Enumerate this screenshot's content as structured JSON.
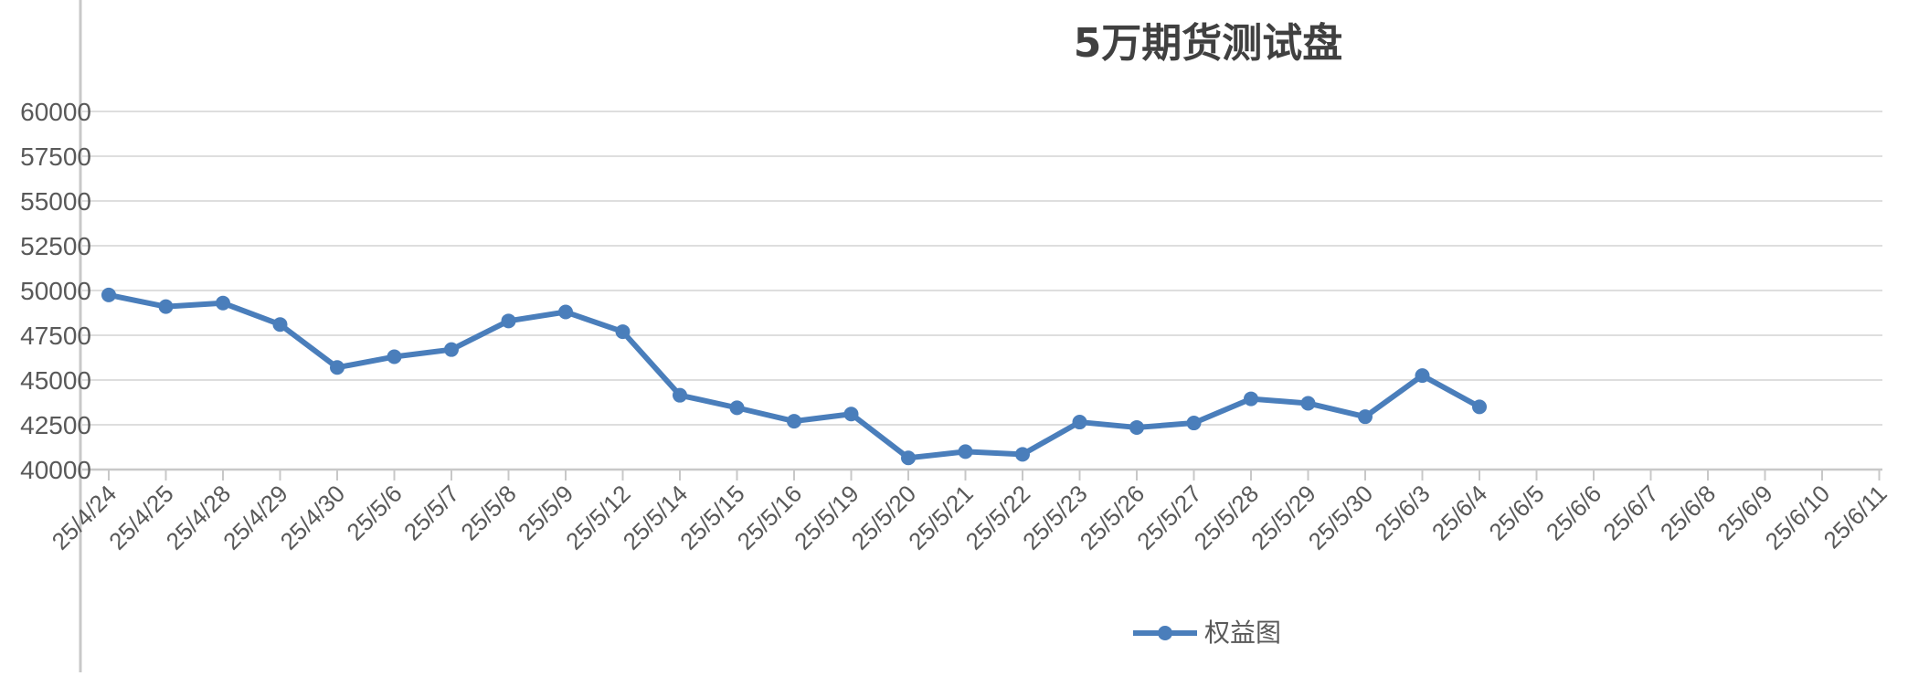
{
  "chart_data": {
    "type": "line",
    "title": "5万期货测试盘",
    "xlabel": "",
    "ylabel": "",
    "ylim": [
      40000,
      60000
    ],
    "yticks": [
      "40000",
      "42500",
      "45000",
      "47500",
      "50000",
      "52500",
      "55000",
      "57500",
      "60000"
    ],
    "categories": [
      "25/4/24",
      "25/4/25",
      "25/4/28",
      "25/4/29",
      "25/4/30",
      "25/5/6",
      "25/5/7",
      "25/5/8",
      "25/5/9",
      "25/5/12",
      "25/5/14",
      "25/5/15",
      "25/5/16",
      "25/5/19",
      "25/5/20",
      "25/5/21",
      "25/5/22",
      "25/5/23",
      "25/5/26",
      "25/5/27",
      "25/5/28",
      "25/5/29",
      "25/5/30",
      "25/6/3",
      "25/6/4",
      "25/6/5",
      "25/6/6",
      "25/6/7",
      "25/6/8",
      "25/6/9",
      "25/6/10",
      "25/6/11"
    ],
    "series": [
      {
        "name": "权益图",
        "color": "#4a7ebb",
        "values": [
          49750,
          49100,
          49300,
          48100,
          45700,
          46300,
          46700,
          48300,
          48800,
          47700,
          44150,
          43450,
          42700,
          43100,
          40650,
          41000,
          40850,
          42650,
          42350,
          42600,
          43950,
          43700,
          42950,
          45250,
          43500,
          null,
          null,
          null,
          null,
          null,
          null,
          null
        ]
      }
    ],
    "grid": true,
    "legend": "bottom"
  }
}
